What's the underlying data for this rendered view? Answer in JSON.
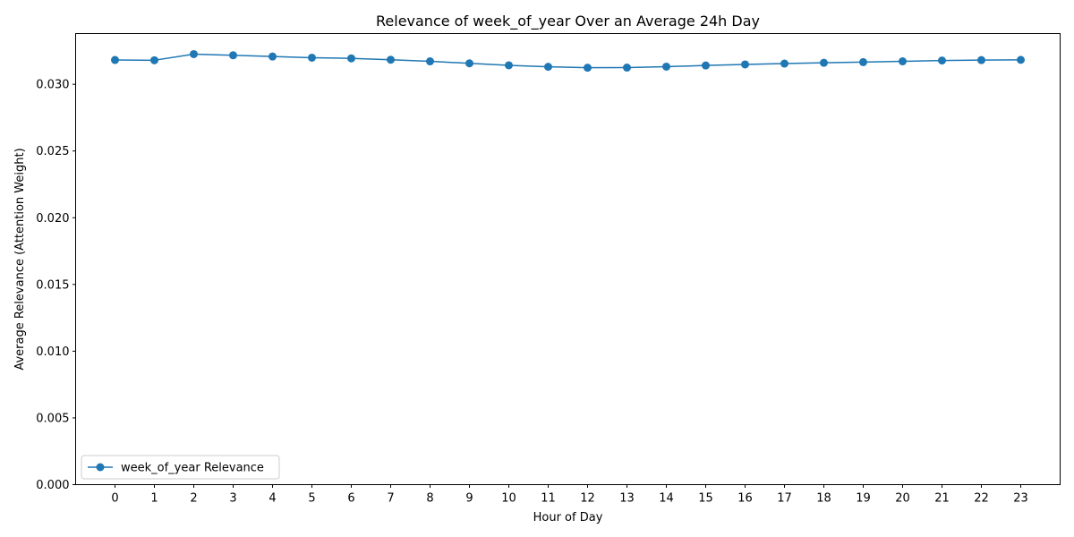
{
  "chart_data": {
    "type": "line",
    "title": "Relevance of week_of_year Over an Average 24h Day",
    "xlabel": "Hour of Day",
    "ylabel": "Average Relevance (Attention Weight)",
    "categories": [
      "0",
      "1",
      "2",
      "3",
      "4",
      "5",
      "6",
      "7",
      "8",
      "9",
      "10",
      "11",
      "12",
      "13",
      "14",
      "15",
      "16",
      "17",
      "18",
      "19",
      "20",
      "21",
      "22",
      "23"
    ],
    "yticks": [
      "0.000",
      "0.005",
      "0.010",
      "0.015",
      "0.020",
      "0.025",
      "0.030"
    ],
    "ylim": [
      0,
      0.0338
    ],
    "xlim": [
      -1.0,
      24.0
    ],
    "grid": false,
    "legend_position": "lower-left",
    "series": [
      {
        "name": "week_of_year Relevance",
        "color": "#1f77b4",
        "marker": "circle",
        "values": [
          0.03182,
          0.0318,
          0.03226,
          0.03217,
          0.03208,
          0.03199,
          0.03194,
          0.03184,
          0.03172,
          0.03157,
          0.03142,
          0.03131,
          0.03124,
          0.03125,
          0.03132,
          0.03141,
          0.03149,
          0.03155,
          0.03161,
          0.03166,
          0.03172,
          0.03178,
          0.03181,
          0.03183
        ]
      }
    ]
  }
}
